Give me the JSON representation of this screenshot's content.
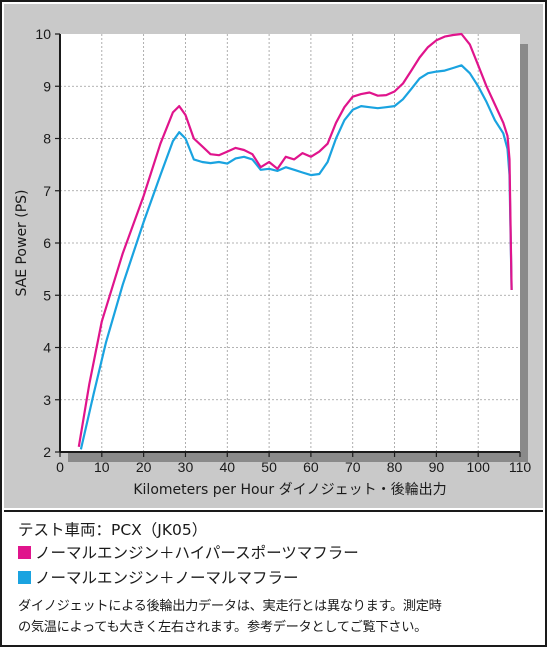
{
  "chart_data": {
    "type": "line",
    "xlabel": "Kilometers per Hour ダイノジェット・後輪出力",
    "ylabel": "SAE Power (PS)",
    "xlim": [
      0,
      110
    ],
    "ylim": [
      2,
      10
    ],
    "x_ticks": [
      "0",
      "10",
      "20",
      "30",
      "40",
      "50",
      "60",
      "70",
      "80",
      "90",
      "100",
      "110"
    ],
    "y_ticks": [
      "2",
      "3",
      "4",
      "5",
      "6",
      "7",
      "8",
      "9",
      "10"
    ],
    "grid": true,
    "series": [
      {
        "name": "ノーマルエンジン＋ハイパースポーツマフラー",
        "color": "#e0148c",
        "points": [
          [
            4.5,
            2.1
          ],
          [
            7,
            3.3
          ],
          [
            10,
            4.5
          ],
          [
            15,
            5.8
          ],
          [
            20,
            6.9
          ],
          [
            24,
            7.9
          ],
          [
            27,
            8.5
          ],
          [
            28.5,
            8.62
          ],
          [
            30,
            8.45
          ],
          [
            32,
            8.0
          ],
          [
            34,
            7.85
          ],
          [
            36,
            7.7
          ],
          [
            38,
            7.68
          ],
          [
            40,
            7.75
          ],
          [
            42,
            7.82
          ],
          [
            44,
            7.78
          ],
          [
            46,
            7.7
          ],
          [
            48,
            7.45
          ],
          [
            50,
            7.55
          ],
          [
            52,
            7.42
          ],
          [
            54,
            7.65
          ],
          [
            56,
            7.6
          ],
          [
            58,
            7.72
          ],
          [
            60,
            7.65
          ],
          [
            62,
            7.75
          ],
          [
            64,
            7.9
          ],
          [
            66,
            8.3
          ],
          [
            68,
            8.6
          ],
          [
            70,
            8.8
          ],
          [
            72,
            8.85
          ],
          [
            74,
            8.88
          ],
          [
            76,
            8.82
          ],
          [
            78,
            8.83
          ],
          [
            80,
            8.9
          ],
          [
            82,
            9.05
          ],
          [
            84,
            9.3
          ],
          [
            86,
            9.55
          ],
          [
            88,
            9.75
          ],
          [
            90,
            9.88
          ],
          [
            92,
            9.95
          ],
          [
            94,
            9.98
          ],
          [
            96,
            10.0
          ],
          [
            98,
            9.8
          ],
          [
            100,
            9.4
          ],
          [
            102,
            9.0
          ],
          [
            104,
            8.65
          ],
          [
            106,
            8.3
          ],
          [
            107,
            8.05
          ],
          [
            107.5,
            7.6
          ],
          [
            108,
            5.1
          ]
        ]
      },
      {
        "name": "ノーマルエンジン＋ノーマルマフラー",
        "color": "#1aa3e0",
        "points": [
          [
            5,
            2.05
          ],
          [
            8,
            3.1
          ],
          [
            11,
            4.1
          ],
          [
            15,
            5.2
          ],
          [
            20,
            6.4
          ],
          [
            24,
            7.3
          ],
          [
            27,
            7.95
          ],
          [
            28.5,
            8.12
          ],
          [
            30,
            8.0
          ],
          [
            32,
            7.6
          ],
          [
            34,
            7.55
          ],
          [
            36,
            7.53
          ],
          [
            38,
            7.55
          ],
          [
            40,
            7.52
          ],
          [
            42,
            7.62
          ],
          [
            44,
            7.65
          ],
          [
            46,
            7.6
          ],
          [
            48,
            7.4
          ],
          [
            50,
            7.42
          ],
          [
            52,
            7.38
          ],
          [
            54,
            7.45
          ],
          [
            56,
            7.4
          ],
          [
            58,
            7.35
          ],
          [
            60,
            7.3
          ],
          [
            62,
            7.32
          ],
          [
            64,
            7.55
          ],
          [
            66,
            8.0
          ],
          [
            68,
            8.35
          ],
          [
            70,
            8.55
          ],
          [
            72,
            8.62
          ],
          [
            74,
            8.6
          ],
          [
            76,
            8.58
          ],
          [
            78,
            8.6
          ],
          [
            80,
            8.62
          ],
          [
            82,
            8.75
          ],
          [
            84,
            8.95
          ],
          [
            86,
            9.15
          ],
          [
            88,
            9.25
          ],
          [
            90,
            9.28
          ],
          [
            92,
            9.3
          ],
          [
            94,
            9.35
          ],
          [
            96,
            9.4
          ],
          [
            98,
            9.25
          ],
          [
            100,
            9.0
          ],
          [
            102,
            8.7
          ],
          [
            104,
            8.35
          ],
          [
            106,
            8.1
          ],
          [
            107,
            7.8
          ],
          [
            107.5,
            7.3
          ],
          [
            108,
            5.1
          ]
        ]
      }
    ]
  },
  "legend": {
    "vehicle": "テスト車両：PCX（JK05）",
    "series1_label": "ノーマルエンジン＋ハイパースポーツマフラー",
    "series1_color": "#e0148c",
    "series2_label": "ノーマルエンジン＋ノーマルマフラー",
    "series2_color": "#1aa3e0",
    "note_line1": "ダイノジェットによる後輪出力データは、実走行とは異なります。測定時",
    "note_line2": "の気温によっても大きく左右されます。参考データとしてご覧下さい。"
  }
}
